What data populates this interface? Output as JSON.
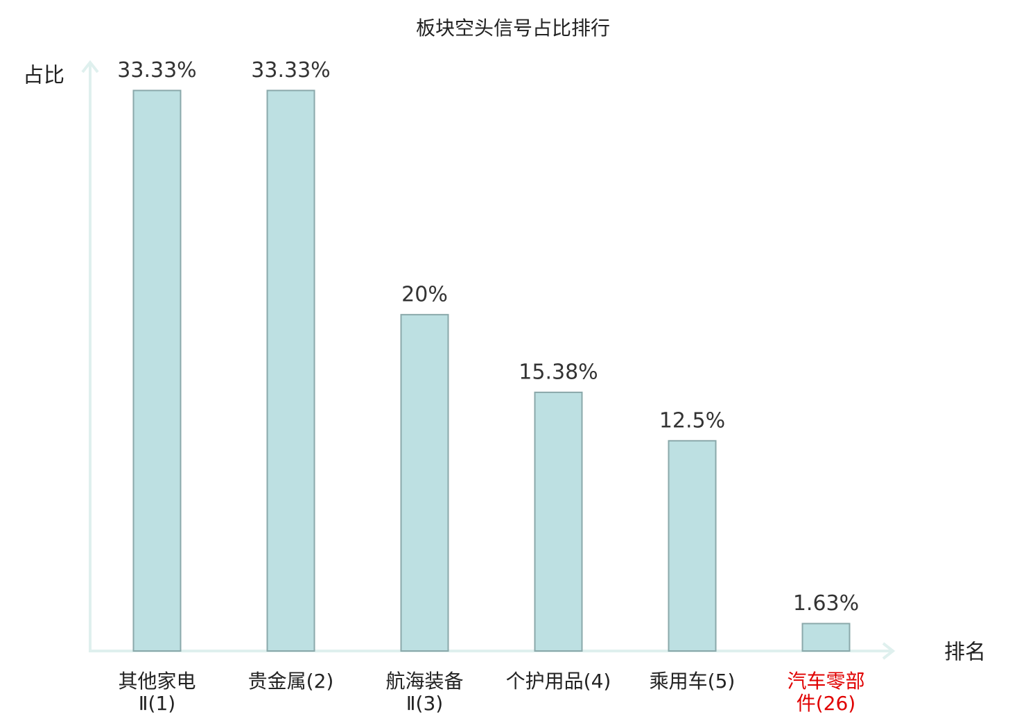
{
  "chart_data": {
    "type": "bar",
    "title": "板块空头信号占比排行",
    "y_label": "占比",
    "x_label": "排名",
    "categories": [
      [
        "其他家电",
        "Ⅱ(1)"
      ],
      [
        "贵金属(2)"
      ],
      [
        "航海装备",
        "Ⅱ(3)"
      ],
      [
        "个护用品(4)"
      ],
      [
        "乘用车(5)"
      ],
      [
        "汽车零部",
        "件(26)"
      ]
    ],
    "label_colors": [
      "#222222",
      "#222222",
      "#222222",
      "#222222",
      "#222222",
      "#e00000"
    ],
    "values": [
      33.33,
      33.33,
      20,
      15.38,
      12.5,
      1.63
    ],
    "value_labels": [
      "33.33%",
      "33.33%",
      "20%",
      "15.38%",
      "12.5%",
      "1.63%"
    ],
    "color": "#bde0e2",
    "edge_color": "#8aa8aa",
    "ylim": [
      0,
      35
    ]
  }
}
